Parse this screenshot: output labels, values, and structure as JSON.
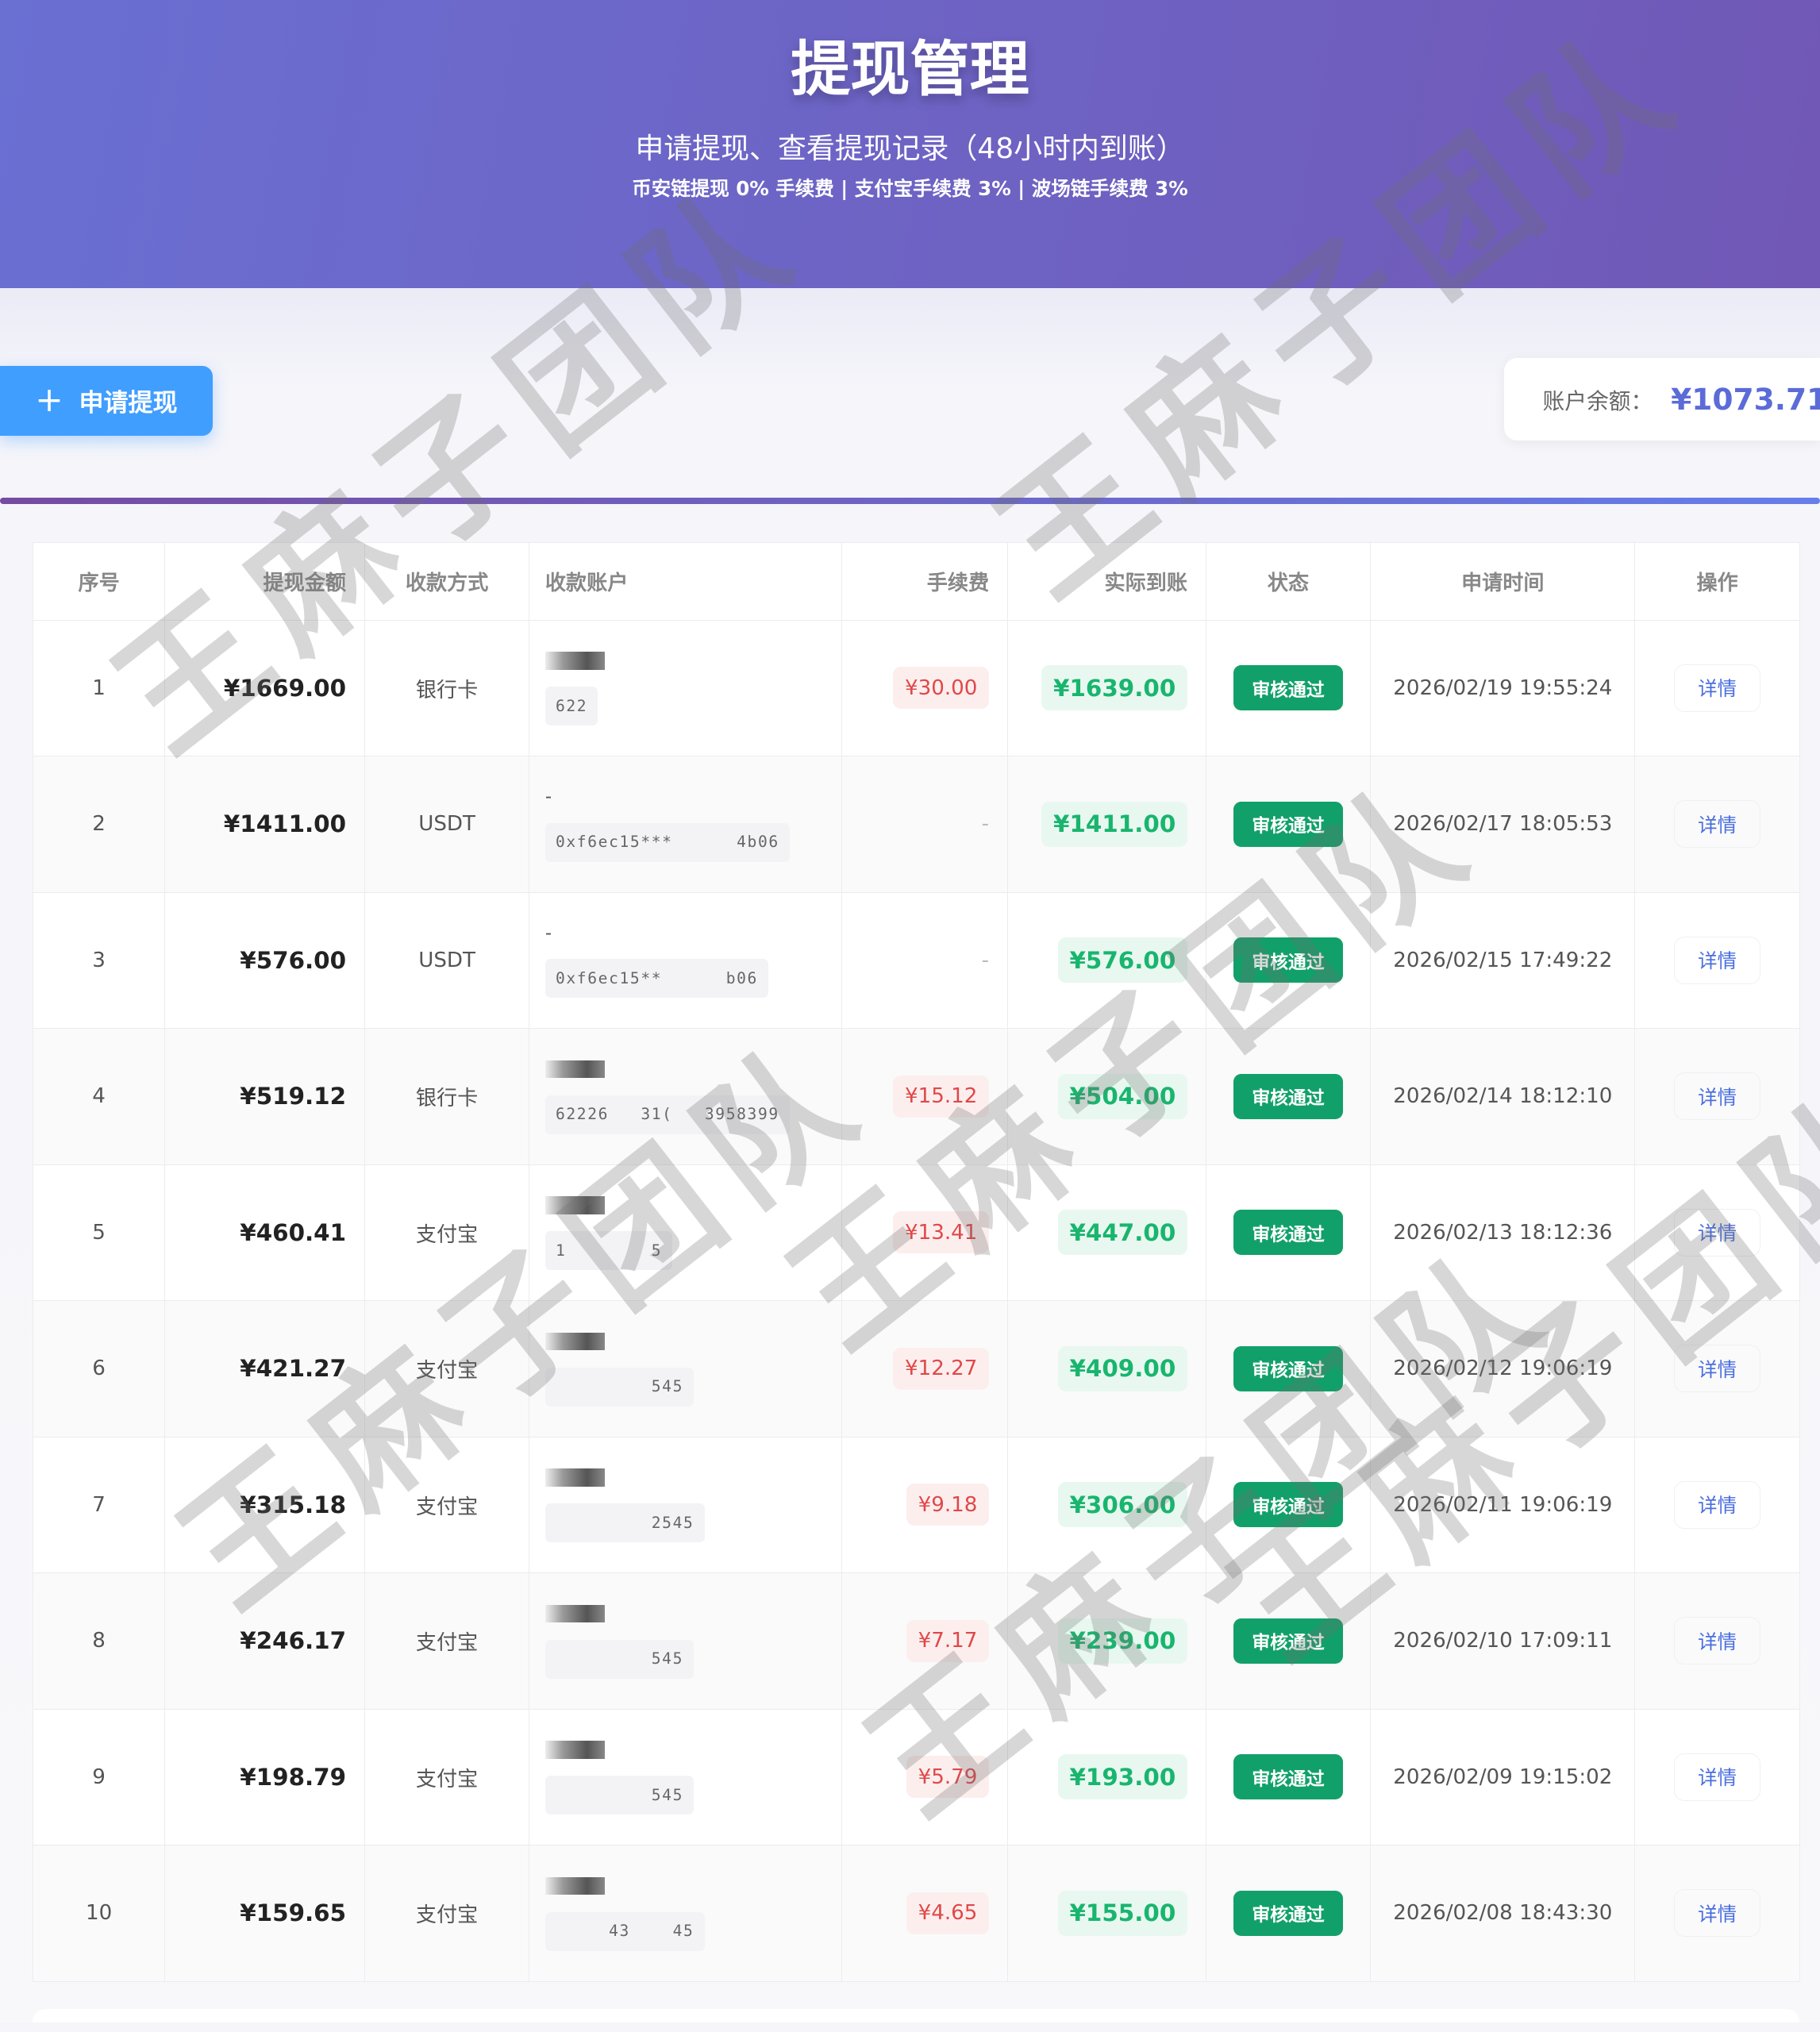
{
  "header": {
    "title": "提现管理",
    "subtitle": "申请提现、查看提现记录（48小时内到账）",
    "fees": "币安链提现 0% 手续费 | 支付宝手续费 3% | 波场链手续费 3%"
  },
  "actions": {
    "apply_label": "申请提现",
    "apply_icon": "plus-icon"
  },
  "balance": {
    "label": "账户余额：",
    "value": "¥1073.71"
  },
  "watermark": "王麻子团队",
  "table": {
    "headers": [
      "序号",
      "提现金额",
      "收款方式",
      "收款账户",
      "手续费",
      "实际到账",
      "状态",
      "申请时间",
      "操作"
    ],
    "rows": [
      {
        "no": "1",
        "amount": "¥1669.00",
        "method": "银行卡",
        "acc_top": "",
        "acc": "622",
        "fee": "¥30.00",
        "actual": "¥1639.00",
        "status": "审核通过",
        "time": "2026/02/19 19:55:24",
        "op": "详情"
      },
      {
        "no": "2",
        "amount": "¥1411.00",
        "method": "USDT",
        "acc_top": "-",
        "acc": "0xf6ec15***      4b06",
        "fee": "-",
        "actual": "¥1411.00",
        "status": "审核通过",
        "time": "2026/02/17 18:05:53",
        "op": "详情"
      },
      {
        "no": "3",
        "amount": "¥576.00",
        "method": "USDT",
        "acc_top": "-",
        "acc": "0xf6ec15**      b06",
        "fee": "-",
        "actual": "¥576.00",
        "status": "审核通过",
        "time": "2026/02/15 17:49:22",
        "op": "详情"
      },
      {
        "no": "4",
        "amount": "¥519.12",
        "method": "银行卡",
        "acc_top": "",
        "acc": "62226   31(   3958399",
        "fee": "¥15.12",
        "actual": "¥504.00",
        "status": "审核通过",
        "time": "2026/02/14 18:12:10",
        "op": "详情"
      },
      {
        "no": "5",
        "amount": "¥460.41",
        "method": "支付宝",
        "acc_top": "",
        "acc": "1        5",
        "fee": "¥13.41",
        "actual": "¥447.00",
        "status": "审核通过",
        "time": "2026/02/13 18:12:36",
        "op": "详情"
      },
      {
        "no": "6",
        "amount": "¥421.27",
        "method": "支付宝",
        "acc_top": "",
        "acc": "         545",
        "fee": "¥12.27",
        "actual": "¥409.00",
        "status": "审核通过",
        "time": "2026/02/12 19:06:19",
        "op": "详情"
      },
      {
        "no": "7",
        "amount": "¥315.18",
        "method": "支付宝",
        "acc_top": "",
        "acc": "         2545",
        "fee": "¥9.18",
        "actual": "¥306.00",
        "status": "审核通过",
        "time": "2026/02/11 19:06:19",
        "op": "详情"
      },
      {
        "no": "8",
        "amount": "¥246.17",
        "method": "支付宝",
        "acc_top": "",
        "acc": "         545",
        "fee": "¥7.17",
        "actual": "¥239.00",
        "status": "审核通过",
        "time": "2026/02/10 17:09:11",
        "op": "详情"
      },
      {
        "no": "9",
        "amount": "¥198.79",
        "method": "支付宝",
        "acc_top": "",
        "acc": "         545",
        "fee": "¥5.79",
        "actual": "¥193.00",
        "status": "审核通过",
        "time": "2026/02/09 19:15:02",
        "op": "详情"
      },
      {
        "no": "10",
        "amount": "¥159.65",
        "method": "支付宝",
        "acc_top": "",
        "acc": "     43    45",
        "fee": "¥4.65",
        "actual": "¥155.00",
        "status": "审核通过",
        "time": "2026/02/08 18:43:30",
        "op": "详情"
      }
    ]
  },
  "colors": {
    "header_start": "#6a6fd2",
    "header_end": "#7158b6",
    "primary": "#409eff",
    "success": "#12a06a",
    "danger": "#e04848",
    "balance": "#5b6bd8"
  }
}
